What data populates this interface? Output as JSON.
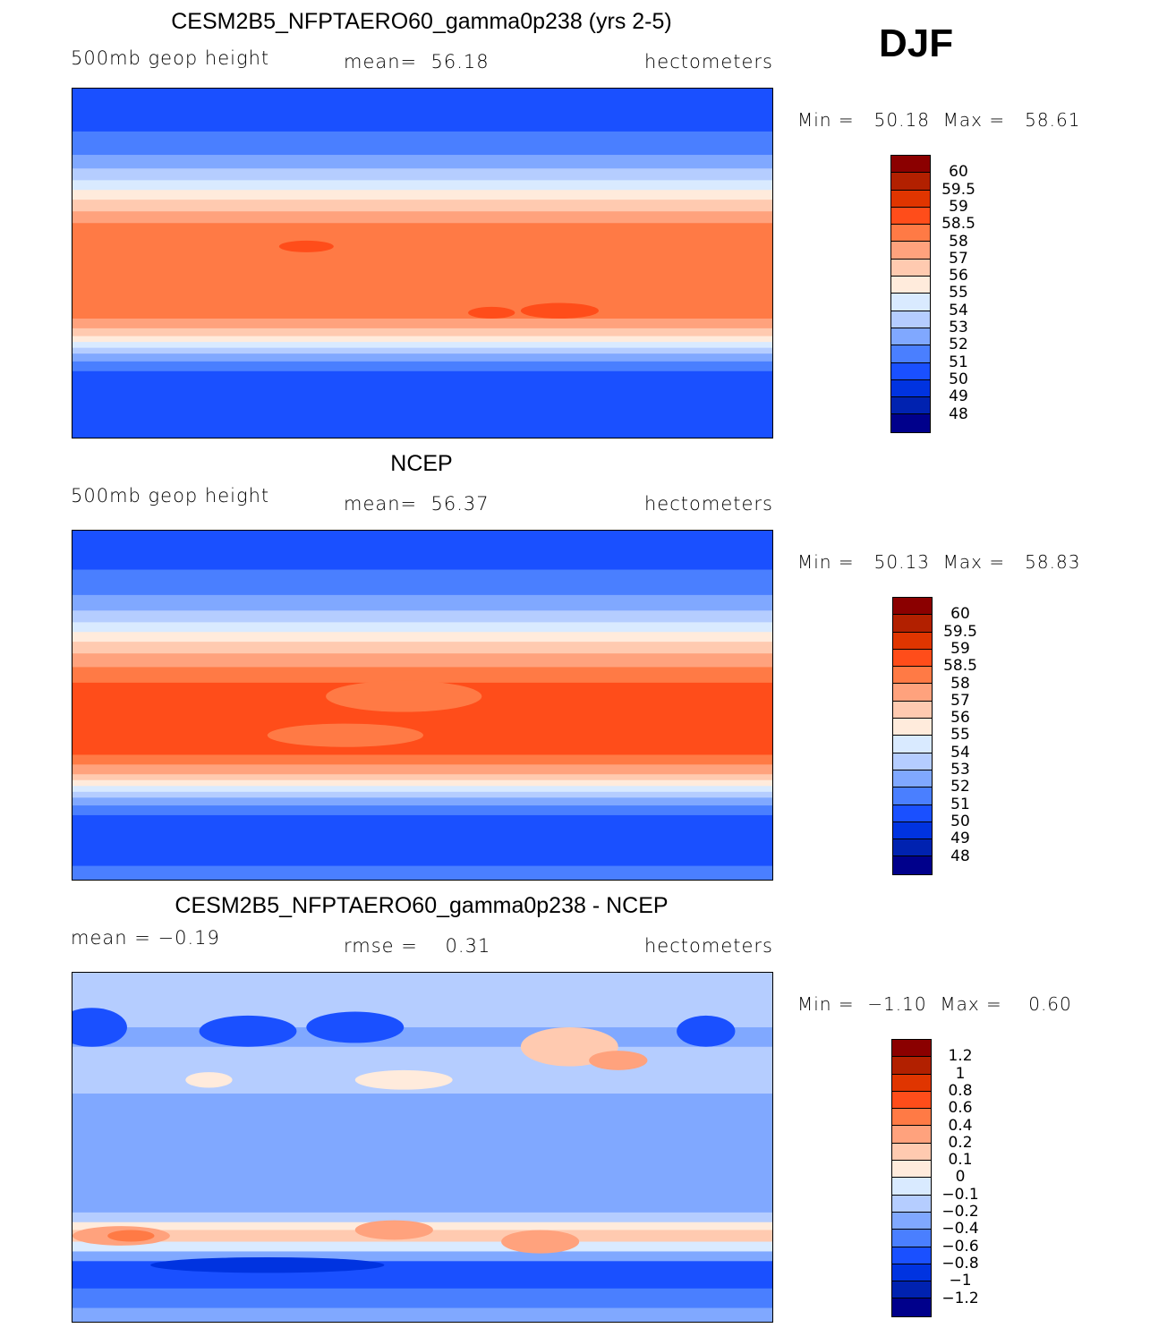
{
  "season": "DJF",
  "colors": [
    "#00008b",
    "#0022b0",
    "#0033e0",
    "#1a50ff",
    "#4a7fff",
    "#80a8ff",
    "#b5cdff",
    "#d9eaff",
    "#ffebdc",
    "#ffcab0",
    "#ffa27d",
    "#ff7a45",
    "#ff4d1a",
    "#e03500",
    "#b22000",
    "#8b0000"
  ],
  "chart_data": [
    {
      "type": "heatmap",
      "title": "CESM2B5_NFPTAERO60_gamma0p238 (yrs 2-5)",
      "variable": "500mb geop height",
      "stat_text": "mean=  56.18",
      "units": "hectometers",
      "min_max": "Min =   50.18  Max =   58.61",
      "levels": [
        "60",
        "59.5",
        "59",
        "58.5",
        "58",
        "57",
        "56",
        "55",
        "54",
        "53",
        "52",
        "51",
        "50",
        "49",
        "48"
      ],
      "zonal_bands": [
        [
          90,
          3
        ],
        [
          68,
          4
        ],
        [
          56,
          5
        ],
        [
          49,
          6
        ],
        [
          43,
          7
        ],
        [
          38,
          8
        ],
        [
          33,
          9
        ],
        [
          27,
          10
        ],
        [
          21,
          11
        ],
        [
          -28,
          10
        ],
        [
          -33,
          9
        ],
        [
          -37,
          8
        ],
        [
          -40,
          7
        ],
        [
          -43,
          6
        ],
        [
          -46,
          5
        ],
        [
          -50,
          4
        ],
        [
          -55,
          3
        ]
      ],
      "blobs": [
        [
          150,
          9,
          14,
          3,
          12
        ],
        [
          245,
          -25,
          12,
          3,
          12
        ],
        [
          280,
          -24,
          20,
          4,
          12
        ]
      ]
    },
    {
      "type": "heatmap",
      "title": "NCEP",
      "variable": "500mb geop height",
      "stat_text": "mean=  56.37",
      "units": "hectometers",
      "min_max": "Min =   50.13  Max =   58.83",
      "levels": [
        "60",
        "59.5",
        "59",
        "58.5",
        "58",
        "57",
        "56",
        "55",
        "54",
        "53",
        "52",
        "51",
        "50",
        "49",
        "48"
      ],
      "zonal_bands": [
        [
          90,
          3
        ],
        [
          70,
          4
        ],
        [
          57,
          5
        ],
        [
          49,
          6
        ],
        [
          43,
          7
        ],
        [
          38,
          8
        ],
        [
          33,
          9
        ],
        [
          27,
          10
        ],
        [
          20,
          11
        ],
        [
          12,
          12
        ],
        [
          -25,
          11
        ],
        [
          -30,
          10
        ],
        [
          -35,
          9
        ],
        [
          -38,
          8
        ],
        [
          -41,
          7
        ],
        [
          -44,
          6
        ],
        [
          -47,
          5
        ],
        [
          -51,
          4
        ],
        [
          -56,
          3
        ],
        [
          -82,
          4
        ]
      ],
      "blobs": [
        [
          200,
          5,
          40,
          8,
          11
        ],
        [
          170,
          -15,
          40,
          6,
          11
        ]
      ]
    },
    {
      "type": "heatmap",
      "title": "CESM2B5_NFPTAERO60_gamma0p238 - NCEP",
      "variable": "mean =   −0.19",
      "stat_text": "rmse =    0.31",
      "units": "hectometers",
      "min_max": "Min =  −1.10  Max =    0.60",
      "levels": [
        "1.2",
        "1",
        "0.8",
        "0.6",
        "0.4",
        "0.2",
        "0.1",
        "0",
        "−0.1",
        "−0.2",
        "−0.4",
        "−0.6",
        "−0.8",
        "−1",
        "−1.2"
      ],
      "zonal_bands": [
        [
          90,
          6
        ],
        [
          62,
          5
        ],
        [
          52,
          6
        ],
        [
          40,
          6
        ],
        [
          28,
          5
        ],
        [
          -33,
          6
        ],
        [
          -38,
          8
        ],
        [
          -42,
          9
        ],
        [
          -48,
          7
        ],
        [
          -53,
          5
        ],
        [
          -58,
          3
        ],
        [
          -72,
          4
        ],
        [
          -82,
          5
        ]
      ],
      "blobs": [
        [
          40,
          62,
          18,
          10,
          3
        ],
        [
          120,
          60,
          25,
          8,
          3
        ],
        [
          175,
          62,
          25,
          8,
          3
        ],
        [
          200,
          35,
          25,
          5,
          8
        ],
        [
          285,
          52,
          25,
          10,
          9
        ],
        [
          310,
          45,
          15,
          5,
          10
        ],
        [
          100,
          35,
          12,
          4,
          8
        ],
        [
          55,
          -45,
          25,
          5,
          10
        ],
        [
          60,
          -45,
          12,
          3,
          11
        ],
        [
          195,
          -42,
          20,
          5,
          10
        ],
        [
          270,
          -48,
          20,
          6,
          10
        ],
        [
          130,
          -60,
          60,
          4,
          2
        ],
        [
          355,
          60,
          15,
          8,
          3
        ]
      ]
    }
  ]
}
